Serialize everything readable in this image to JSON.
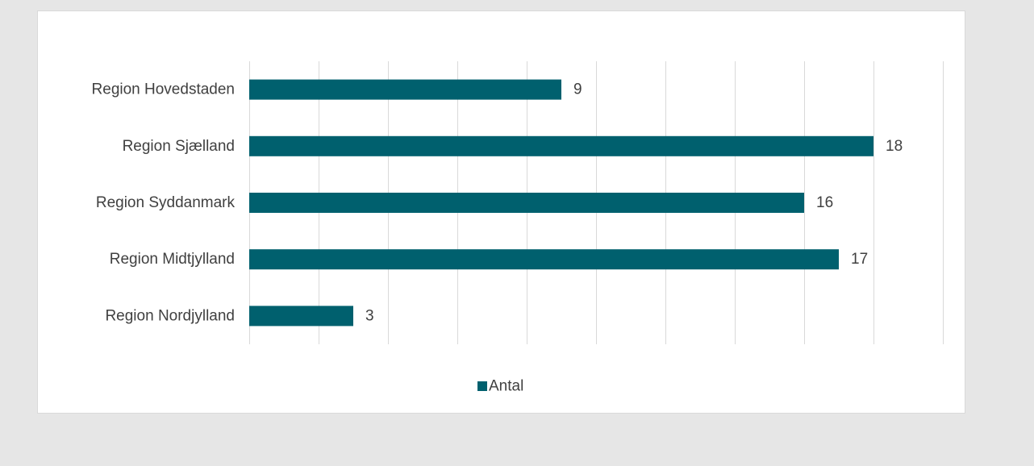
{
  "chart_data": {
    "type": "bar",
    "orientation": "horizontal",
    "categories": [
      "Region Hovedstaden",
      "Region Sjælland",
      "Region Syddanmark",
      "Region Midtjylland",
      "Region Nordjylland"
    ],
    "series": [
      {
        "name": "Antal",
        "values": [
          9,
          18,
          16,
          17,
          3
        ],
        "color": "#00606e"
      }
    ],
    "xlim": [
      0,
      20
    ],
    "x_gridlines": true,
    "x_tick_labels_shown": false,
    "data_labels": true,
    "legend": "bottom",
    "title": "",
    "xlabel": "",
    "ylabel": ""
  },
  "colors": {
    "background": "#e6e6e6",
    "plot_area": "#ffffff",
    "gridline": "#d9d9d9",
    "bar": "#00606e",
    "text": "#404040"
  }
}
